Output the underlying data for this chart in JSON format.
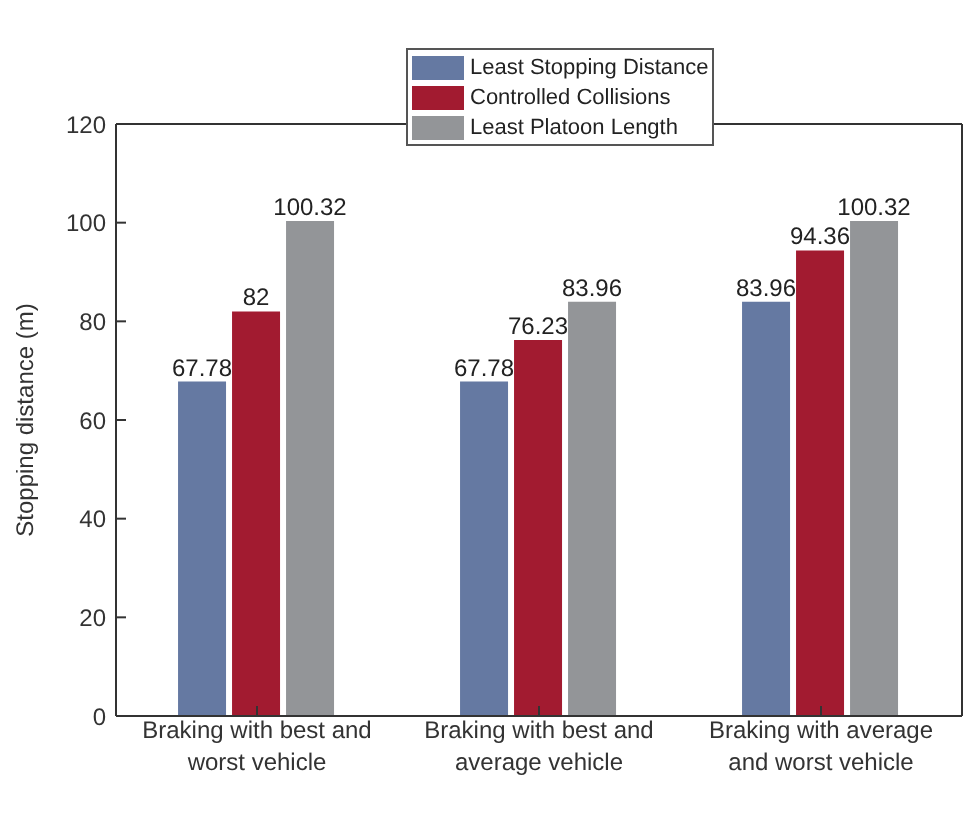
{
  "chart_data": {
    "type": "bar",
    "ylabel": "Stopping distance (m)",
    "categories": [
      "Braking with best and worst vehicle",
      "Braking with best and average vehicle",
      "Braking with average and worst vehicle"
    ],
    "series": [
      {
        "name": "Least Stopping Distance",
        "color": "#6579a2",
        "values": [
          67.78,
          67.78,
          83.96
        ]
      },
      {
        "name": "Controlled Collisions",
        "color": "#a21b30",
        "values": [
          82,
          76.23,
          94.36
        ]
      },
      {
        "name": "Least Platoon Length",
        "color": "#939598",
        "values": [
          100.32,
          83.96,
          100.32
        ]
      }
    ],
    "ylim": [
      0,
      120
    ],
    "yticks": [
      0,
      20,
      40,
      60,
      80,
      100,
      120
    ],
    "data_labels": true,
    "legend": "top"
  }
}
